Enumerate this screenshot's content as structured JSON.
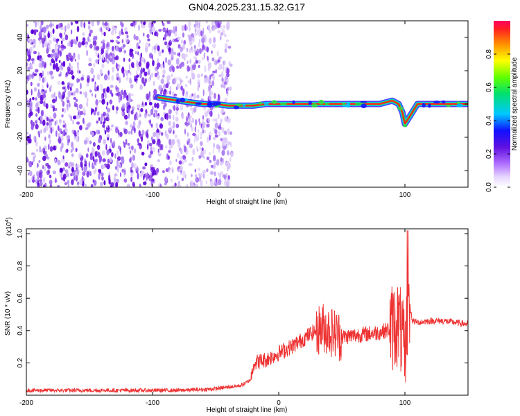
{
  "title": "GN04.2025.231.15.32.G17",
  "chart_data": [
    {
      "type": "heatmap",
      "xlabel": "Height of straight line (km)",
      "ylabel": "Frequency (Hz)",
      "xlim": [
        -200,
        150
      ],
      "ylim": [
        -50,
        50
      ],
      "xticks": [
        -200,
        -100,
        0,
        100
      ],
      "yticks": [
        -40,
        -20,
        0,
        20,
        40
      ],
      "noise_region_x": [
        -200,
        -37
      ],
      "ridge": {
        "x": [
          -96,
          -80,
          -70,
          -60,
          -50,
          -40,
          -30,
          -20,
          -10,
          0,
          10,
          20,
          30,
          40,
          50,
          60,
          70,
          80,
          85,
          90,
          95,
          98,
          100,
          110,
          120,
          130,
          140,
          150
        ],
        "freq": [
          4,
          2,
          1,
          0,
          0,
          -1,
          -1,
          -1,
          0,
          0,
          0,
          0,
          0,
          0,
          0,
          0,
          0,
          0,
          1,
          2,
          0,
          -5,
          -12,
          0,
          0,
          0,
          0,
          0
        ]
      },
      "colorbar": {
        "label": "Normalized spectral amplitude",
        "range": [
          0,
          1
        ],
        "ticks": [
          0.0,
          0.2,
          0.4,
          0.6,
          0.8
        ],
        "tick_labels": [
          "0.0",
          "0.2",
          "0.4",
          "0.6",
          "0.8"
        ]
      },
      "colors": {
        "noise": "#6a0ddb",
        "ridge_core": "#ff2020",
        "ridge_edge": "#00c8ff"
      }
    },
    {
      "type": "line",
      "xlabel": "Height of straight line (km)",
      "ylabel": "SNR (10 * v/v)",
      "multiplier_label": "(x10",
      "multiplier_exp": "4",
      "multiplier_close": ")",
      "xlim": [
        -200,
        150
      ],
      "ylim": [
        0,
        1.03
      ],
      "xticks": [
        -200,
        -100,
        0,
        100
      ],
      "yticks": [
        0.2,
        0.4,
        0.6,
        0.8,
        1.0
      ],
      "ytick_labels": [
        "0.2",
        "0.4",
        "0.6",
        "0.8",
        "1.0"
      ],
      "series": [
        {
          "color": "#ee3333",
          "x": [
            -200,
            -180,
            -160,
            -140,
            -120,
            -100,
            -80,
            -60,
            -50,
            -40,
            -30,
            -25,
            -22,
            -20,
            -10,
            0,
            10,
            20,
            25,
            30,
            35,
            40,
            45,
            50,
            60,
            70,
            80,
            85,
            90,
            95,
            98,
            100,
            102,
            104,
            106,
            110,
            120,
            130,
            140,
            150
          ],
          "y": [
            0.03,
            0.03,
            0.03,
            0.03,
            0.03,
            0.03,
            0.03,
            0.035,
            0.04,
            0.05,
            0.06,
            0.08,
            0.1,
            0.2,
            0.22,
            0.26,
            0.3,
            0.35,
            0.38,
            0.4,
            0.42,
            0.4,
            0.38,
            0.36,
            0.37,
            0.38,
            0.39,
            0.4,
            0.42,
            0.45,
            0.35,
            0.2,
            0.5,
            0.55,
            0.46,
            0.45,
            0.46,
            0.46,
            0.45,
            0.44
          ]
        }
      ]
    }
  ]
}
